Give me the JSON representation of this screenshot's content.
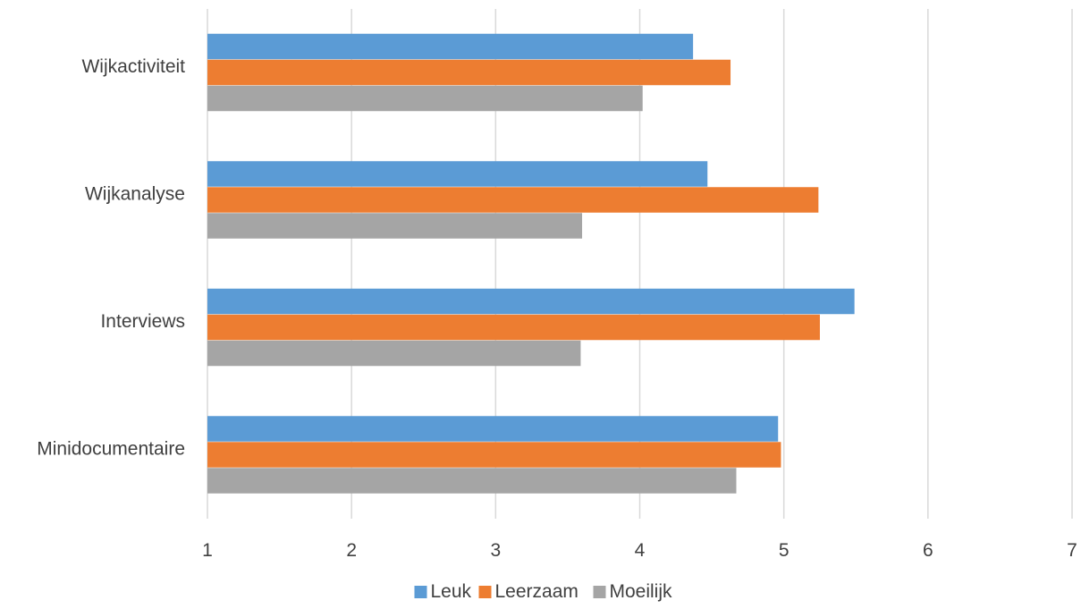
{
  "chart_data": {
    "type": "bar",
    "orientation": "horizontal",
    "categories": [
      "Wijkactiviteit",
      "Wijkanalyse",
      "Interviews",
      "Minidocumentaire"
    ],
    "series": [
      {
        "name": "Leuk",
        "color": "#5B9BD5",
        "values": [
          4.37,
          4.47,
          5.49,
          4.96
        ]
      },
      {
        "name": "Leerzaam",
        "color": "#ED7D31",
        "values": [
          4.63,
          5.24,
          5.25,
          4.98
        ]
      },
      {
        "name": "Moeilijk",
        "color": "#A5A5A5",
        "values": [
          4.02,
          3.6,
          3.59,
          4.67
        ]
      }
    ],
    "xlim": [
      1,
      7
    ],
    "x_ticks": [
      "1",
      "2",
      "3",
      "4",
      "5",
      "6",
      "7"
    ],
    "grid": true,
    "legend_position": "bottom",
    "title": "",
    "xlabel": "",
    "ylabel": ""
  }
}
